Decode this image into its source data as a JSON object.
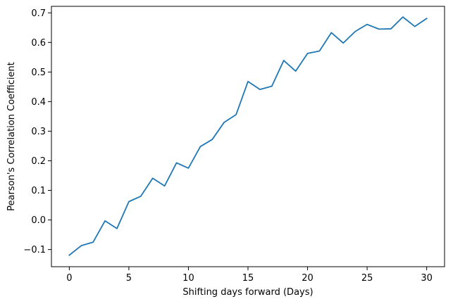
{
  "chart_data": {
    "type": "line",
    "title": "",
    "xlabel": "Shifting days forward (Days)",
    "ylabel": "Pearson's Correlation Coefficient",
    "xlim": [
      -1.5,
      31.5
    ],
    "ylim": [
      -0.158,
      0.722
    ],
    "grid": false,
    "line_color": "#1f77b4",
    "x_ticks": [
      0,
      5,
      10,
      15,
      20,
      25,
      30
    ],
    "x_tick_labels": [
      "0",
      "5",
      "10",
      "15",
      "20",
      "25",
      "30"
    ],
    "y_ticks": [
      -0.1,
      0.0,
      0.1,
      0.2,
      0.3,
      0.4,
      0.5,
      0.6,
      0.7
    ],
    "y_tick_labels": [
      "−0.1",
      "0.0",
      "0.1",
      "0.2",
      "0.3",
      "0.4",
      "0.5",
      "0.6",
      "0.7"
    ],
    "series": [
      {
        "x": [
          0,
          1,
          2,
          3,
          4,
          5,
          6,
          7,
          8,
          9,
          10,
          11,
          12,
          13,
          14,
          15,
          16,
          17,
          18,
          19,
          20,
          21,
          22,
          23,
          24,
          25,
          26,
          27,
          28,
          29,
          30
        ],
        "values": [
          -0.119,
          -0.087,
          -0.075,
          -0.003,
          -0.029,
          0.062,
          0.08,
          0.141,
          0.115,
          0.193,
          0.175,
          0.248,
          0.272,
          0.33,
          0.356,
          0.468,
          0.441,
          0.452,
          0.539,
          0.503,
          0.563,
          0.571,
          0.633,
          0.598,
          0.637,
          0.661,
          0.645,
          0.646,
          0.686,
          0.654,
          0.681
        ]
      }
    ]
  }
}
